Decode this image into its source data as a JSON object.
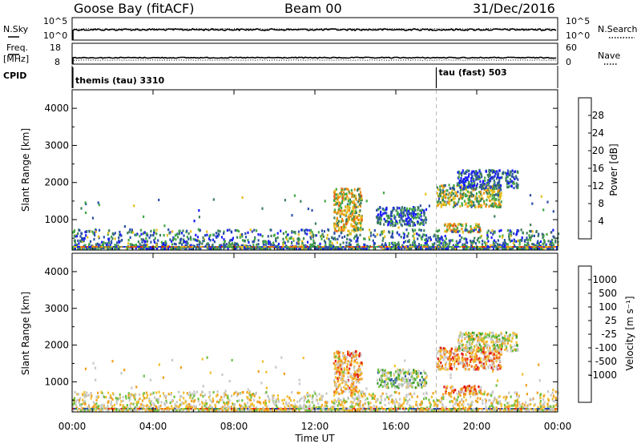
{
  "header": {
    "site": "Goose Bay (fitACF)",
    "beam": "Beam 00",
    "date": "31/Dec/2016"
  },
  "panels": {
    "nsky": {
      "left_label": "N.Sky",
      "right_label": "N.Search",
      "left_ticks": [
        "10^5",
        "10^0"
      ],
      "right_ticks": [
        "10^5",
        "10^0"
      ]
    },
    "freq": {
      "left_label": "Freq.",
      "left_unit": "[MHz]",
      "right_label": "Nave",
      "left_ticks": [
        "18",
        "8"
      ],
      "right_ticks": [
        "60",
        "0"
      ]
    },
    "cpid": {
      "label": "CPID",
      "modes": [
        {
          "text": "themis (tau) 3310",
          "start_hour": 0
        },
        {
          "text": "tau (fast) 503",
          "start_hour": 18
        }
      ]
    }
  },
  "colors": {
    "power": [
      "#1a1aff",
      "#2d4fa8",
      "#3e7f5c",
      "#44a844",
      "#e8c020",
      "#ee8a10",
      "#ee5a10",
      "#e02010"
    ],
    "velocity": [
      "#e01818",
      "#f06010",
      "#f0a020",
      "#f0c030",
      "#c8c8c8",
      "#c8c8c8",
      "#70c040",
      "#3a9a30",
      "#3060a0",
      "#2040b0"
    ]
  },
  "chart_data": [
    {
      "type": "heatmap",
      "name": "power-panel",
      "ylabel": "Slant Range [km]",
      "ylim": [
        180,
        4500
      ],
      "yticks": [
        "1000",
        "2000",
        "3000",
        "4000"
      ],
      "ytick_values": [
        1000,
        2000,
        3000,
        4000
      ],
      "xlim": [
        0,
        24
      ],
      "colorbar": {
        "label": "Power [dB]",
        "ticks": [
          "4",
          "8",
          "12",
          "16",
          "20",
          "24",
          "28"
        ],
        "range": [
          0,
          32
        ]
      },
      "regions": [
        {
          "h": [
            12.9,
            14.3
          ],
          "r": [
            650,
            1800
          ],
          "level": 0.55
        },
        {
          "h": [
            18.0,
            21.2
          ],
          "r": [
            1300,
            1900
          ],
          "level": 0.45
        },
        {
          "h": [
            18.3,
            20.2
          ],
          "r": [
            620,
            850
          ],
          "level": 0.6
        },
        {
          "h": [
            19.0,
            22.0
          ],
          "r": [
            1800,
            2300
          ],
          "level": 0.2
        },
        {
          "h": [
            15.0,
            17.5
          ],
          "r": [
            800,
            1300
          ],
          "level": 0.25
        },
        {
          "h": [
            0,
            24
          ],
          "r": [
            180,
            700
          ],
          "level": 0.3
        }
      ]
    },
    {
      "type": "heatmap",
      "name": "velocity-panel",
      "ylabel": "Slant Range [km]",
      "ylim": [
        180,
        4500
      ],
      "yticks": [
        "1000",
        "2000",
        "3000",
        "4000"
      ],
      "ytick_values": [
        1000,
        2000,
        3000,
        4000
      ],
      "xlim": [
        0,
        24
      ],
      "xlabel": "Time UT",
      "xticks": [
        "00:00",
        "04:00",
        "08:00",
        "12:00",
        "16:00",
        "20:00",
        "00:00"
      ],
      "xtick_values": [
        0,
        4,
        8,
        12,
        16,
        20,
        24
      ],
      "colorbar": {
        "label": "Velocity [m s⁻¹]",
        "ticks": [
          "1000",
          "500",
          "100",
          "25",
          "-25",
          "-100",
          "-500",
          "-1000"
        ]
      },
      "regions": [
        {
          "h": [
            12.9,
            14.3
          ],
          "r": [
            650,
            1800
          ],
          "level": 0.3
        },
        {
          "h": [
            18.0,
            21.2
          ],
          "r": [
            1300,
            1900
          ],
          "level": 0.25
        },
        {
          "h": [
            18.3,
            20.2
          ],
          "r": [
            620,
            850
          ],
          "level": 0.2
        },
        {
          "h": [
            19.0,
            22.0
          ],
          "r": [
            1800,
            2300
          ],
          "level": 0.5
        },
        {
          "h": [
            15.0,
            17.5
          ],
          "r": [
            800,
            1300
          ],
          "level": 0.6
        },
        {
          "h": [
            0,
            24
          ],
          "r": [
            180,
            700
          ],
          "level": 0.45
        }
      ]
    }
  ],
  "xaxis": {
    "label": "Time UT",
    "ticks": [
      "00:00",
      "04:00",
      "08:00",
      "12:00",
      "16:00",
      "20:00",
      "00:00"
    ],
    "tick_values": [
      0,
      4,
      8,
      12,
      16,
      20,
      24
    ]
  }
}
